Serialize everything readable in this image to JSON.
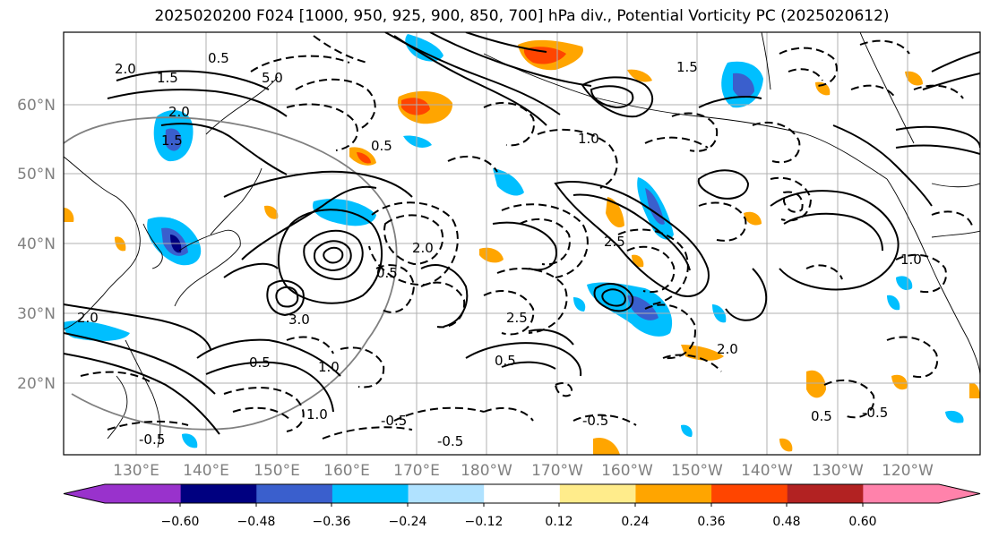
{
  "title": "2025020200 F024 [1000, 950, 925, 900, 850, 700] hPa div., Potential Vorticity PC (2025020612)",
  "map": {
    "lat_labels": [
      "60°N",
      "50°N",
      "40°N",
      "30°N",
      "20°N"
    ],
    "lon_labels": [
      "130°E",
      "140°E",
      "150°E",
      "160°E",
      "170°E",
      "180°W",
      "170°W",
      "160°W",
      "150°W",
      "140°W",
      "130°W",
      "120°W"
    ],
    "contour_labels": [
      "2.0",
      "1.5",
      "0.5",
      "5.0",
      "2.0",
      "1.5",
      "2.0",
      "0.5",
      "1.0",
      "1.5",
      "3.0",
      "2.0",
      "0.5",
      "1.0",
      "2.5",
      "0.5",
      "2.0",
      "-0.5",
      "-0.5",
      "-0.5",
      "-0.5",
      "0.5",
      "-0.5",
      "1.0",
      "1.0",
      "0.5",
      "2.5"
    ]
  },
  "colorbar": {
    "tick_labels": [
      "−0.60",
      "−0.48",
      "−0.36",
      "−0.24",
      "−0.12",
      "0.12",
      "0.24",
      "0.36",
      "0.48",
      "0.60"
    ],
    "colors": [
      "#9932cc",
      "#000080",
      "#3a5fcd",
      "#00bfff",
      "#b0e2ff",
      "#ffffff",
      "#ffec8b",
      "#ffa500",
      "#ff4500",
      "#b22222",
      "#ff82ab"
    ]
  }
}
